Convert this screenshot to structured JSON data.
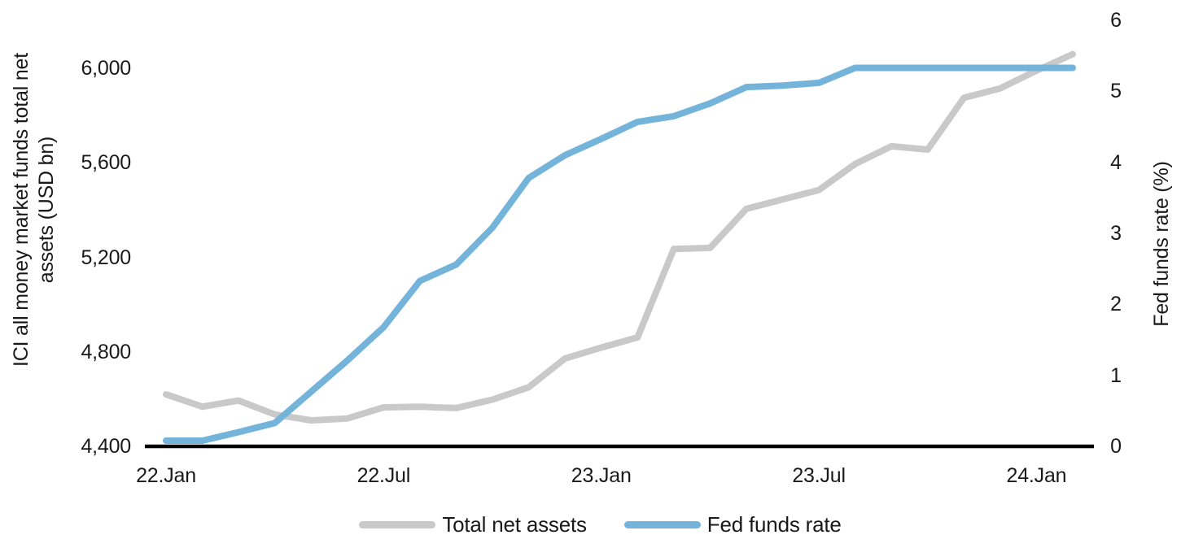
{
  "colors": {
    "background": "#ffffff",
    "axis_line": "#000000",
    "text": "#1a1a1a",
    "total_net_assets": "#c9c9c9",
    "fed_funds_rate": "#74b4da"
  },
  "chart_data": {
    "type": "line",
    "title": "",
    "grid": "off",
    "legend_position": "bottom",
    "x_months": [
      "22.Jan",
      "22.Feb",
      "22.Mar",
      "22.Apr",
      "22.May",
      "22.Jun",
      "22.Jul",
      "22.Aug",
      "22.Sep",
      "22.Oct",
      "22.Nov",
      "22.Dec",
      "23.Jan",
      "23.Feb",
      "23.Mar",
      "23.Apr",
      "23.May",
      "23.Jun",
      "23.Jul",
      "23.Aug",
      "23.Sep",
      "23.Oct",
      "23.Nov",
      "23.Dec",
      "24.Jan",
      "24.Feb"
    ],
    "x_ticks": [
      {
        "label": "22.Jan",
        "index": 0
      },
      {
        "label": "22.Jul",
        "index": 6
      },
      {
        "label": "23.Jan",
        "index": 12
      },
      {
        "label": "23.Jul",
        "index": 18
      },
      {
        "label": "24.Jan",
        "index": 24
      }
    ],
    "series": [
      {
        "name": "Total net assets",
        "axis": "left",
        "color": "#c9c9c9",
        "values": [
          4620,
          4568,
          4594,
          4535,
          4510,
          4518,
          4565,
          4568,
          4562,
          4598,
          4650,
          4772,
          4818,
          4861,
          5235,
          5240,
          5405,
          5445,
          5485,
          5595,
          5670,
          5656,
          5875,
          5915,
          5990,
          6060
        ]
      },
      {
        "name": "Fed funds rate",
        "axis": "right",
        "color": "#74b4da",
        "values": [
          0.08,
          0.08,
          0.2,
          0.33,
          0.77,
          1.21,
          1.68,
          2.33,
          2.56,
          3.08,
          3.78,
          4.1,
          4.33,
          4.57,
          4.65,
          4.83,
          5.06,
          5.08,
          5.12,
          5.33,
          5.33,
          5.33,
          5.33,
          5.33,
          5.33,
          5.33
        ]
      }
    ],
    "left_axis": {
      "title": "ICI all money market funds total net assets (USD bn)",
      "title_lines": [
        "ICI all money market funds total net",
        "assets (USD bn)"
      ],
      "range": [
        4400,
        6000
      ],
      "ticks": [
        {
          "label": "4,400",
          "value": 4400
        },
        {
          "label": "4,800",
          "value": 4800
        },
        {
          "label": "5,200",
          "value": 5200
        },
        {
          "label": "5,600",
          "value": 5600
        },
        {
          "label": "6,000",
          "value": 6000
        }
      ]
    },
    "right_axis": {
      "title": "Fed funds rate (%)",
      "range": [
        0,
        6
      ],
      "ticks": [
        {
          "label": "0",
          "value": 0
        },
        {
          "label": "1",
          "value": 1
        },
        {
          "label": "2",
          "value": 2
        },
        {
          "label": "3",
          "value": 3
        },
        {
          "label": "4",
          "value": 4
        },
        {
          "label": "5",
          "value": 5
        },
        {
          "label": "6",
          "value": 6
        }
      ]
    }
  }
}
